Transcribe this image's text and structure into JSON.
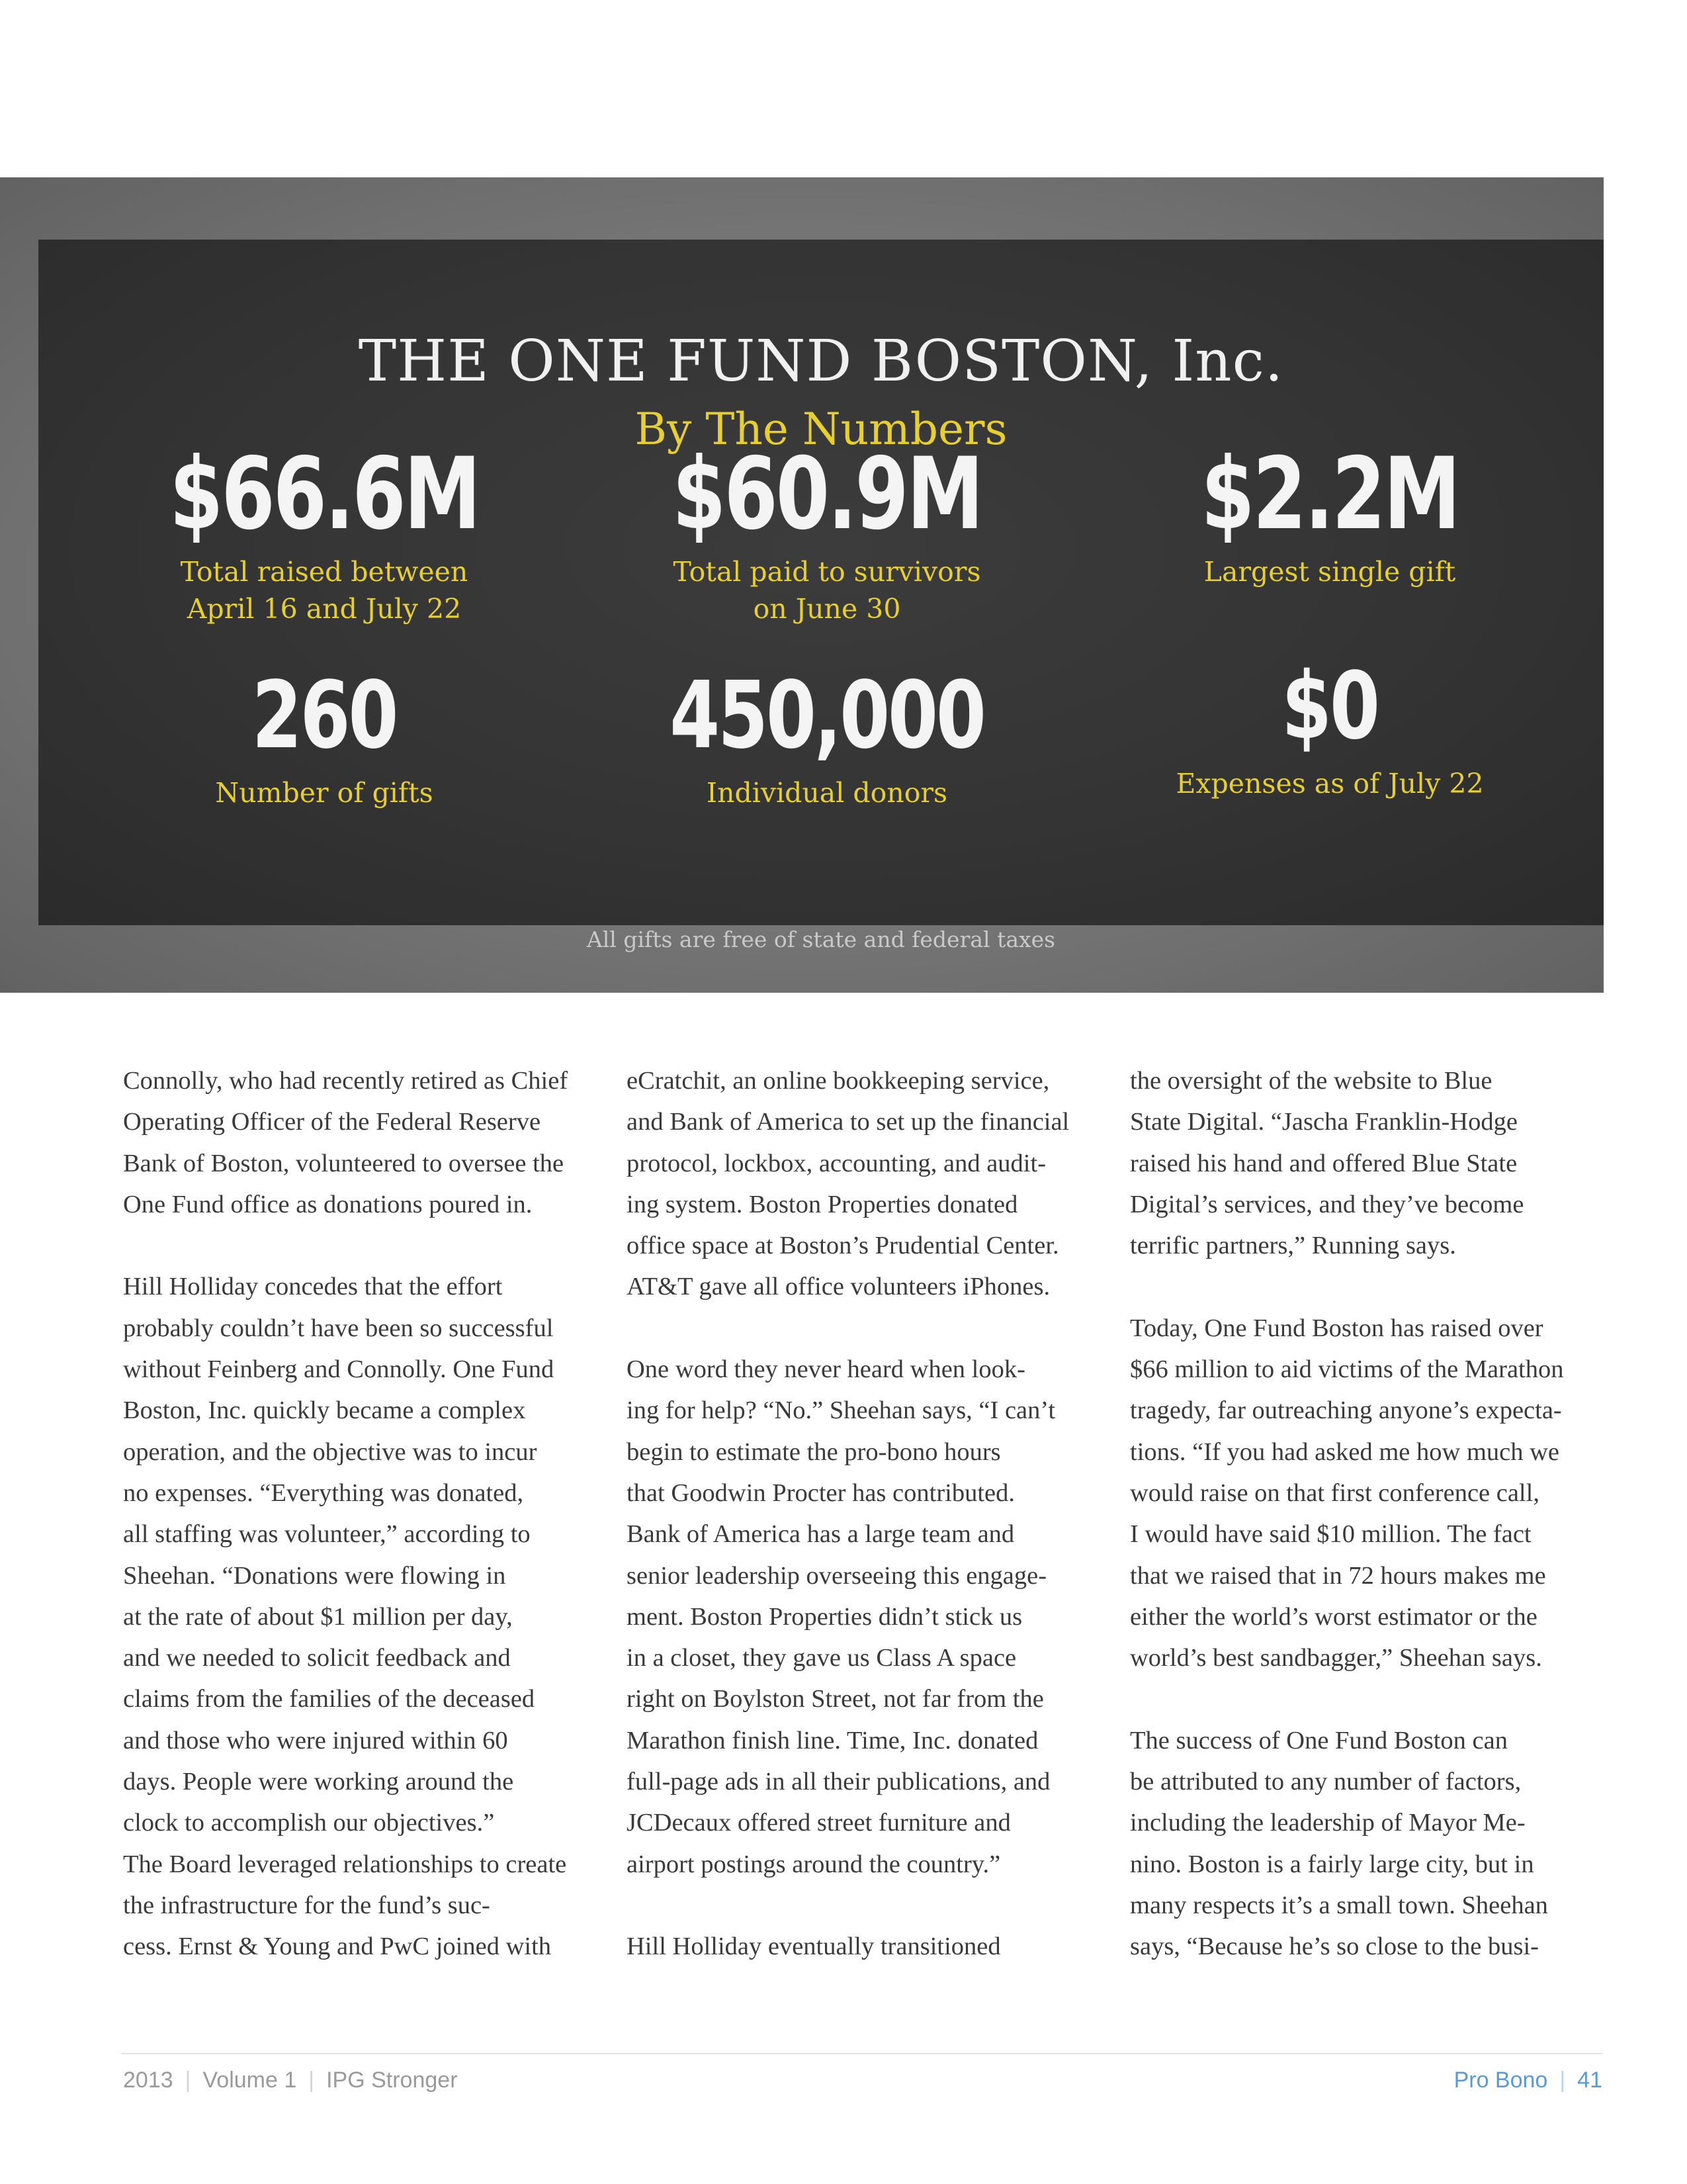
{
  "infographic": {
    "title": "THE ONE FUND BOSTON, Inc.",
    "subtitle": "By The Numbers",
    "stats": [
      {
        "value": "$66.6M",
        "label": "Total raised between\nApril 16 and July 22"
      },
      {
        "value": "$60.9M",
        "label": "Total paid to survivors\non June 30"
      },
      {
        "value": "$2.2M",
        "label": "Largest single gift"
      },
      {
        "value": "260",
        "label": "Number of gifts"
      },
      {
        "value": "450,000",
        "label": "Individual donors"
      },
      {
        "value": "$0",
        "label": "Expenses as of July 22"
      }
    ],
    "note": "All gifts are free of state and federal taxes"
  },
  "article": {
    "col1_p1": "Connolly, who had recently retired as Chief\nOperating Officer of the Federal Reserve\nBank of Boston, volunteered to oversee the\nOne Fund office as donations poured in.",
    "col1_p2": "Hill Holliday concedes that the effort\nprobably couldn’t have been so successful\nwithout Feinberg and Connolly. One Fund\nBoston, Inc. quickly became a complex\noperation, and the objective was to incur\nno expenses. “Everything was donated,\nall staffing was volunteer,” according to\nSheehan. “Donations were flowing in\nat the rate of about $1 million per day,\nand we needed to solicit feedback and\nclaims from the families of the deceased\nand those who were injured within 60\ndays. People were working around the\nclock to accomplish our objectives.”\nThe Board leveraged relationships to create\nthe infrastructure for the fund’s suc-\ncess. Ernst & Young and PwC joined with",
    "col2_p1": "eCratchit, an online bookkeeping service,\nand Bank of America to set up the financial\nprotocol, lockbox, accounting, and audit-\ning system. Boston Properties donated\noffice space at Boston’s Prudential Center.\nAT&T gave all office volunteers iPhones.",
    "col2_p2": "One word they never heard when look-\ning for help? “No.” Sheehan says, “I can’t\nbegin to estimate the pro-bono hours\nthat Goodwin Procter has contributed.\nBank of America has a large team and\nsenior leadership overseeing this engage-\nment. Boston Properties didn’t stick us\nin a closet, they gave us Class A space\nright on Boylston Street, not far from the\nMarathon finish line. Time, Inc. donated\nfull-page ads in all their publications, and\nJCDecaux offered street furniture and\nairport postings around the country.”",
    "col2_p3": "Hill Holliday eventually transitioned",
    "col3_p1": "the oversight of the website to Blue\nState Digital. “Jascha Franklin-Hodge\nraised his hand and offered Blue State\nDigital’s services, and they’ve become\nterrific partners,” Running says.",
    "col3_p2": "Today, One Fund Boston has raised over\n$66 million to aid victims of the Marathon\ntragedy, far outreaching anyone’s expecta-\ntions. “If you had asked me how much we\nwould raise on that first conference call,\nI would have said $10 million. The fact\nthat we raised that in 72 hours makes me\neither the world’s worst estimator or the\nworld’s best sandbagger,” Sheehan says.",
    "col3_p3": "The success of One Fund Boston can\nbe attributed to any number of factors,\nincluding the leadership of Mayor Me-\nnino. Boston is a fairly large city, but in\nmany respects it’s a small town. Sheehan\nsays, “Because he’s so close to the busi-"
  },
  "footer": {
    "year": "2013",
    "volume": "Volume 1",
    "publication": "IPG Stronger",
    "section": "Pro Bono",
    "page": "41"
  }
}
